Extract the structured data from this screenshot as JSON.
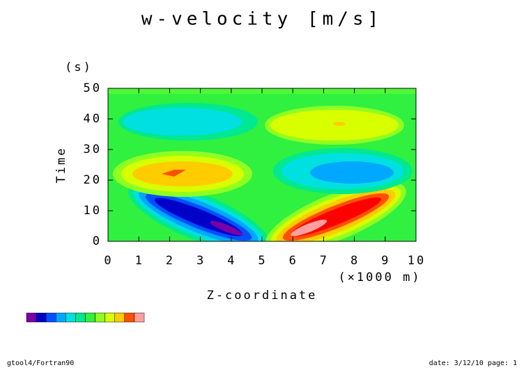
{
  "chart_data": {
    "type": "contour",
    "title": "w-velocity [m/s]",
    "x_label": "Z-coordinate",
    "x_unit": "(×1000 m)",
    "y_label": "Time",
    "y_unit": "(s)",
    "xlim": [
      0,
      10
    ],
    "xticks": [
      0,
      1,
      2,
      3,
      4,
      5,
      6,
      7,
      8,
      9,
      10
    ],
    "ylim": [
      0,
      50
    ],
    "yticks": [
      0,
      10,
      20,
      30,
      40,
      50
    ],
    "colorbar_colors": [
      "#7a00a8",
      "#0000c8",
      "#0050ff",
      "#00a8ff",
      "#00e0e0",
      "#00e890",
      "#30f040",
      "#90ff20",
      "#d8ff00",
      "#ffcc00",
      "#ff5000",
      "#ffa0a0"
    ],
    "footer_left": "gtool4/Fortran90",
    "footer_right": "date: 3/12/10 page: 1"
  }
}
